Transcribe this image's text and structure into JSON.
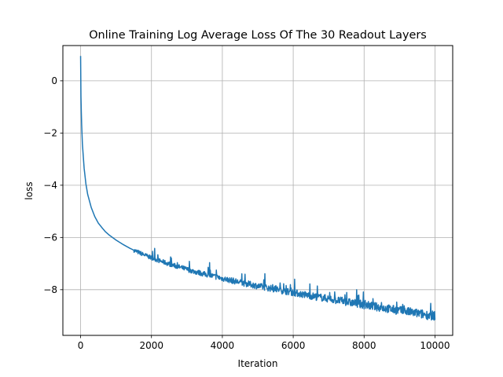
{
  "chart_data": {
    "type": "line",
    "title": "Online Training Log Average Loss Of The 30 Readout Layers",
    "xlabel": "Iteration",
    "ylabel": "loss",
    "xlim": [
      -500,
      10500
    ],
    "ylim": [
      -9.75,
      1.35
    ],
    "xticks": [
      {
        "value": 0,
        "label": "0"
      },
      {
        "value": 2000,
        "label": "2000"
      },
      {
        "value": 4000,
        "label": "4000"
      },
      {
        "value": 6000,
        "label": "6000"
      },
      {
        "value": 8000,
        "label": "8000"
      },
      {
        "value": 10000,
        "label": "10000"
      }
    ],
    "yticks": [
      {
        "value": 0,
        "label": "0"
      },
      {
        "value": -2,
        "label": "−2"
      },
      {
        "value": -4,
        "label": "−4"
      },
      {
        "value": -6,
        "label": "−6"
      },
      {
        "value": -8,
        "label": "−8"
      }
    ],
    "grid": true,
    "series": [
      {
        "color": "#1f77b4",
        "x": [
          0,
          10,
          25,
          50,
          100,
          150,
          200,
          300,
          400,
          500,
          600,
          700,
          800,
          900,
          1000,
          1200,
          1400,
          1600,
          1800,
          2000,
          2200,
          2400,
          2600,
          2800,
          3000,
          3200,
          3400,
          3600,
          3800,
          4000,
          4200,
          4400,
          4600,
          4800,
          5000,
          5200,
          5400,
          5600,
          5800,
          6000,
          6200,
          6400,
          6600,
          6800,
          7000,
          7200,
          7400,
          7600,
          7800,
          8000,
          8200,
          8400,
          8600,
          8800,
          9000,
          9200,
          9400,
          9600,
          9800,
          10000
        ],
        "y": [
          0.95,
          -0.6,
          -1.5,
          -2.4,
          -3.35,
          -3.95,
          -4.35,
          -4.85,
          -5.2,
          -5.45,
          -5.62,
          -5.78,
          -5.9,
          -6.0,
          -6.1,
          -6.27,
          -6.42,
          -6.55,
          -6.67,
          -6.78,
          -6.88,
          -6.97,
          -7.06,
          -7.14,
          -7.22,
          -7.3,
          -7.37,
          -7.44,
          -7.5,
          -7.57,
          -7.63,
          -7.69,
          -7.75,
          -7.8,
          -7.86,
          -7.91,
          -7.96,
          -8.01,
          -8.06,
          -8.11,
          -8.16,
          -8.21,
          -8.26,
          -8.3,
          -8.35,
          -8.4,
          -8.44,
          -8.49,
          -8.53,
          -8.58,
          -8.62,
          -8.67,
          -8.71,
          -8.76,
          -8.8,
          -8.84,
          -8.88,
          -8.93,
          -8.97,
          -9.0
        ]
      }
    ]
  }
}
